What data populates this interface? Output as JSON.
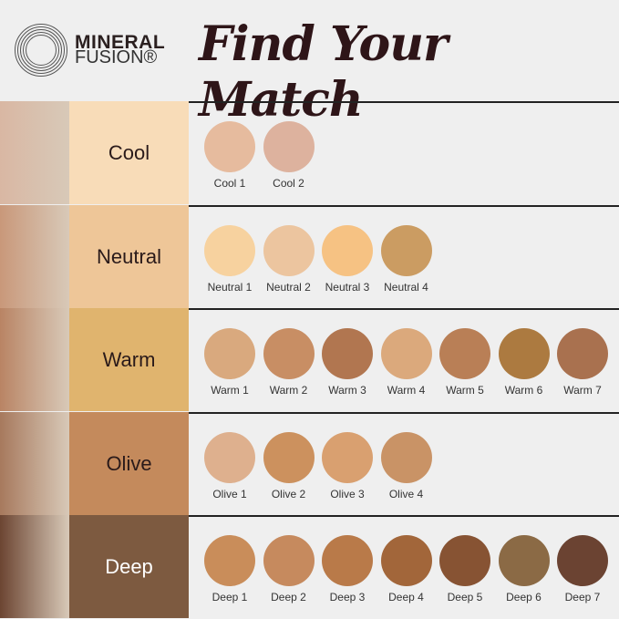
{
  "brand": {
    "line1": "MINERAL",
    "line2": "FUSION®"
  },
  "title": "Find Your Match",
  "rows": [
    {
      "tone": "Cool",
      "tone_color": "#f8dcb8",
      "text_color": "#2a1a1a",
      "photo_color": "#d9b7a3",
      "shades": [
        {
          "label": "Cool 1",
          "color": "#e6bb9e"
        },
        {
          "label": "Cool 2",
          "color": "#ddb29e"
        }
      ]
    },
    {
      "tone": "Neutral",
      "tone_color": "#eec698",
      "text_color": "#2a1a1a",
      "photo_color": "#c9987a",
      "shades": [
        {
          "label": "Neutral 1",
          "color": "#f7d29f"
        },
        {
          "label": "Neutral 2",
          "color": "#ecc59f"
        },
        {
          "label": "Neutral 3",
          "color": "#f6c283"
        },
        {
          "label": "Neutral 4",
          "color": "#cb9c62"
        }
      ]
    },
    {
      "tone": "Warm",
      "tone_color": "#e0b46e",
      "text_color": "#2a1a1a",
      "photo_color": "#b98464",
      "shades": [
        {
          "label": "Warm 1",
          "color": "#d9a97e"
        },
        {
          "label": "Warm 2",
          "color": "#c88e64"
        },
        {
          "label": "Warm 3",
          "color": "#b17650"
        },
        {
          "label": "Warm 4",
          "color": "#dba97c"
        },
        {
          "label": "Warm 5",
          "color": "#b97f56"
        },
        {
          "label": "Warm 6",
          "color": "#ac7a40"
        },
        {
          "label": "Warm 7",
          "color": "#a9714f"
        }
      ]
    },
    {
      "tone": "Olive",
      "tone_color": "#c48a5c",
      "text_color": "#2a1a1a",
      "photo_color": "#a7795d",
      "shades": [
        {
          "label": "Olive 1",
          "color": "#deb08e"
        },
        {
          "label": "Olive 2",
          "color": "#cc915e"
        },
        {
          "label": "Olive 3",
          "color": "#d9a070"
        },
        {
          "label": "Olive 4",
          "color": "#c99366"
        }
      ]
    },
    {
      "tone": "Deep",
      "tone_color": "#7d5a40",
      "text_color": "#ffffff",
      "photo_color": "#6c4532",
      "shades": [
        {
          "label": "Deep 1",
          "color": "#c98d5a"
        },
        {
          "label": "Deep 2",
          "color": "#c68a5e"
        },
        {
          "label": "Deep 3",
          "color": "#b97a49"
        },
        {
          "label": "Deep 4",
          "color": "#a2663a"
        },
        {
          "label": "Deep 5",
          "color": "#875333"
        },
        {
          "label": "Deep 6",
          "color": "#8b6a45"
        },
        {
          "label": "Deep 7",
          "color": "#6b4332"
        }
      ]
    }
  ]
}
